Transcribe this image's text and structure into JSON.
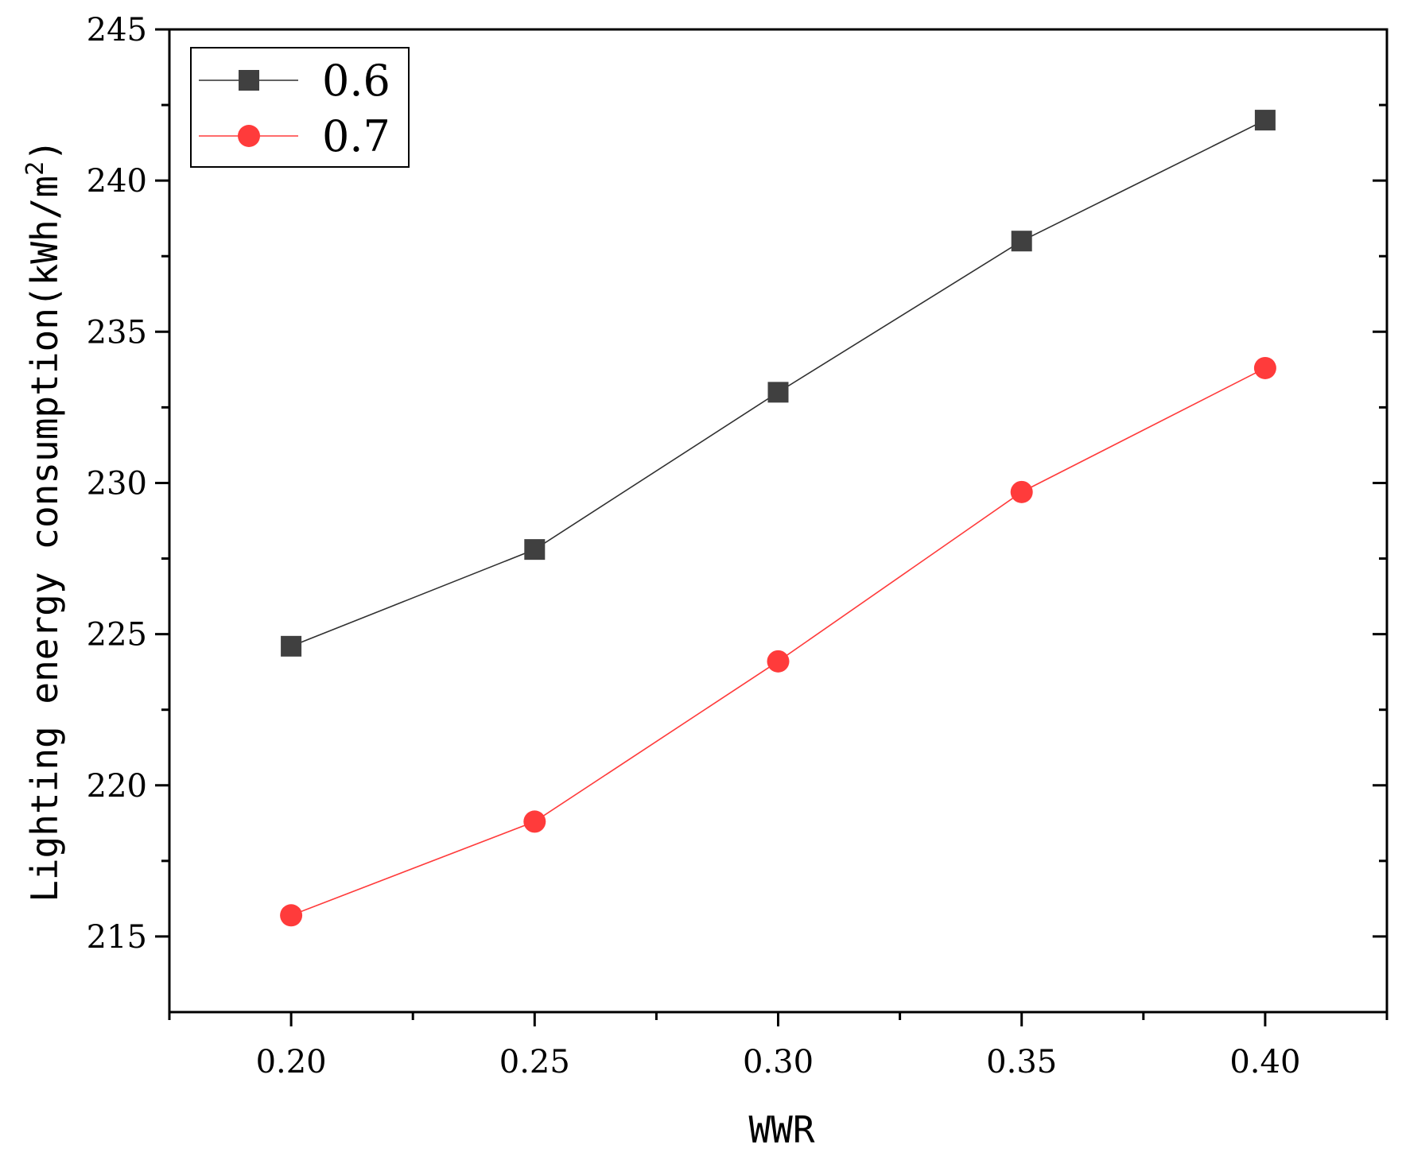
{
  "chart_data": {
    "type": "line",
    "title": "",
    "xlabel": "WWR",
    "ylabel": "Lighting energy consumption(kWh/m",
    "ylabel_sup": "2",
    "ylabel_close": ")",
    "x": [
      0.2,
      0.25,
      0.3,
      0.35,
      0.4
    ],
    "x_tick_labels": [
      "0.20",
      "0.25",
      "0.30",
      "0.35",
      "0.40"
    ],
    "xlim": [
      0.175,
      0.425
    ],
    "y_tick_values": [
      215,
      220,
      225,
      230,
      235,
      240,
      245
    ],
    "y_tick_labels": [
      "215",
      "220",
      "225",
      "230",
      "235",
      "240",
      "245"
    ],
    "ylim": [
      212.5,
      245
    ],
    "grid": false,
    "legend_position": "top-left",
    "series": [
      {
        "name": "0.6",
        "marker": "square",
        "color": "#404040",
        "line_color": "#303030",
        "values": [
          224.6,
          227.8,
          233.0,
          238.0,
          242.0
        ]
      },
      {
        "name": "0.7",
        "marker": "circle",
        "color": "#ff3b3b",
        "line_color": "#ff3b3b",
        "values": [
          215.7,
          218.8,
          224.1,
          229.7,
          233.8
        ]
      }
    ]
  }
}
